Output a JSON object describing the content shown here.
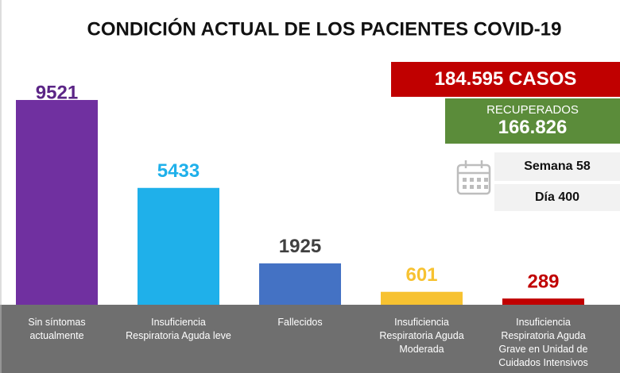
{
  "chart_data": {
    "type": "bar",
    "title": "CONDICIÓN ACTUAL DE LOS PACIENTES COVID-19",
    "categories": [
      "Sin síntomas\nactualmente",
      "Insuficiencia\nRespiratoria Aguda leve",
      "Fallecidos",
      "Insuficiencia\nRespiratoria Aguda\nModerada",
      "Insuficiencia\nRespiratoria Aguda\nGrave en Unidad de\nCuidados Intensivos"
    ],
    "values": [
      9521,
      5433,
      1925,
      601,
      289
    ],
    "colors": [
      "#7030a0",
      "#1fb0ea",
      "#4472c4",
      "#f7c231",
      "#c00000"
    ],
    "label_colors": [
      "#5b2586",
      "#1fb0ea",
      "#404040",
      "#f7c231",
      "#c00000"
    ],
    "ylim": [
      0,
      10000
    ],
    "cases": "184.595 CASOS",
    "recovered_label": "RECUPERADOS",
    "recovered": "166.826",
    "week": "Semana 58",
    "day": "Día 400"
  }
}
